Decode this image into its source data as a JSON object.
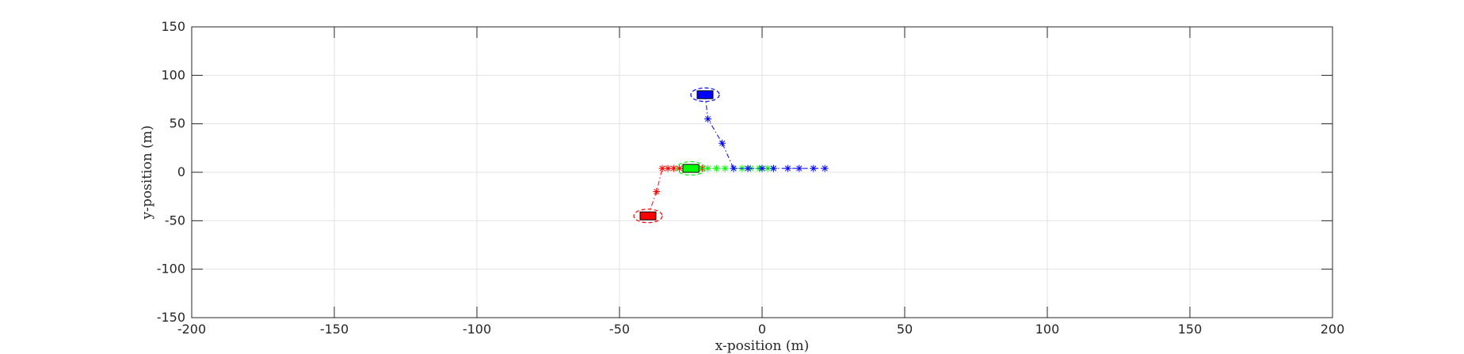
{
  "chart_data": {
    "type": "scatter",
    "xlabel": "x-position (m)",
    "ylabel": "y-position (m)",
    "xlim": [
      -200,
      200
    ],
    "ylim": [
      -150,
      150
    ],
    "xticks": [
      -200,
      -150,
      -100,
      -50,
      0,
      50,
      100,
      150,
      200
    ],
    "yticks": [
      -150,
      -100,
      -50,
      0,
      50,
      100,
      150
    ],
    "xtick_labels": [
      "-200",
      "-150",
      "-100",
      "-50",
      "0",
      "50",
      "100",
      "150",
      "200"
    ],
    "ytick_labels": [
      "-150",
      "-100",
      "-50",
      "0",
      "50",
      "100",
      "150"
    ],
    "grid": true,
    "box": true,
    "colors": {
      "axis": "#262626",
      "grid": "#e3e3e3",
      "red": "#ff0000",
      "green": "#00ff00",
      "blue": "#0000ff"
    },
    "series": [
      {
        "color": "red",
        "vehicle": {
          "x": -40,
          "y": -45
        },
        "ellipse_radius": [
          5,
          7
        ],
        "trajectory": [
          {
            "x": -40,
            "y": -45
          },
          {
            "x": -37,
            "y": -20
          },
          {
            "x": -35,
            "y": 4
          },
          {
            "x": -33,
            "y": 4
          },
          {
            "x": -31,
            "y": 4
          },
          {
            "x": -29,
            "y": 4
          },
          {
            "x": -27,
            "y": 4
          },
          {
            "x": -25,
            "y": 4
          },
          {
            "x": -23,
            "y": 4
          },
          {
            "x": -21,
            "y": 4
          }
        ]
      },
      {
        "color": "green",
        "vehicle": {
          "x": -25,
          "y": 4
        },
        "ellipse_radius": [
          5,
          7
        ],
        "trajectory": [
          {
            "x": -25,
            "y": 4
          },
          {
            "x": -22,
            "y": 4
          },
          {
            "x": -19,
            "y": 4
          },
          {
            "x": -16,
            "y": 4
          },
          {
            "x": -13,
            "y": 4
          },
          {
            "x": -10,
            "y": 4
          },
          {
            "x": -7,
            "y": 4
          },
          {
            "x": -4,
            "y": 4
          },
          {
            "x": -1,
            "y": 4
          },
          {
            "x": 2,
            "y": 4
          },
          {
            "x": 4,
            "y": 4
          }
        ]
      },
      {
        "color": "blue",
        "vehicle": {
          "x": -20,
          "y": 80
        },
        "ellipse_radius": [
          5,
          7
        ],
        "trajectory": [
          {
            "x": -20,
            "y": 80
          },
          {
            "x": -19,
            "y": 55
          },
          {
            "x": -14,
            "y": 30
          },
          {
            "x": -10,
            "y": 4
          },
          {
            "x": -5,
            "y": 4
          },
          {
            "x": 0,
            "y": 4
          },
          {
            "x": 4,
            "y": 4
          },
          {
            "x": 9,
            "y": 4
          },
          {
            "x": 13,
            "y": 4
          },
          {
            "x": 18,
            "y": 4
          },
          {
            "x": 22,
            "y": 4
          }
        ]
      }
    ]
  }
}
